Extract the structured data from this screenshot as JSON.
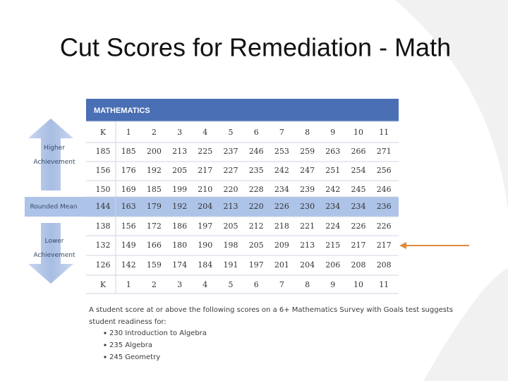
{
  "title": "Cut Scores for Remediation - Math",
  "table": {
    "header": "MATHEMATICS",
    "columns": [
      "K",
      "1",
      "2",
      "3",
      "4",
      "5",
      "6",
      "7",
      "8",
      "9",
      "10",
      "11"
    ],
    "side_labels": [
      "Higher Achievement",
      "Rounded Mean",
      "Lower Achievement"
    ],
    "rows": [
      [
        185,
        185,
        200,
        213,
        225,
        237,
        246,
        253,
        259,
        263,
        266,
        271
      ],
      [
        156,
        176,
        192,
        205,
        217,
        227,
        235,
        242,
        247,
        251,
        254,
        256
      ],
      [
        150,
        169,
        185,
        199,
        210,
        220,
        228,
        234,
        239,
        242,
        245,
        246
      ],
      [
        144,
        163,
        179,
        192,
        204,
        213,
        220,
        226,
        230,
        234,
        234,
        236
      ],
      [
        138,
        156,
        172,
        186,
        197,
        205,
        212,
        218,
        221,
        224,
        226,
        226
      ],
      [
        132,
        149,
        166,
        180,
        190,
        198,
        205,
        209,
        213,
        215,
        217,
        217
      ],
      [
        126,
        142,
        159,
        174,
        184,
        191,
        197,
        201,
        204,
        206,
        208,
        208
      ]
    ]
  },
  "note": "A student score at or above the following scores on a 6+ Mathematics Survey with Goals test suggests student readiness for:",
  "bullets": [
    "230 Introduction to Algebra",
    "235 Algebra",
    "245 Geometry"
  ]
}
